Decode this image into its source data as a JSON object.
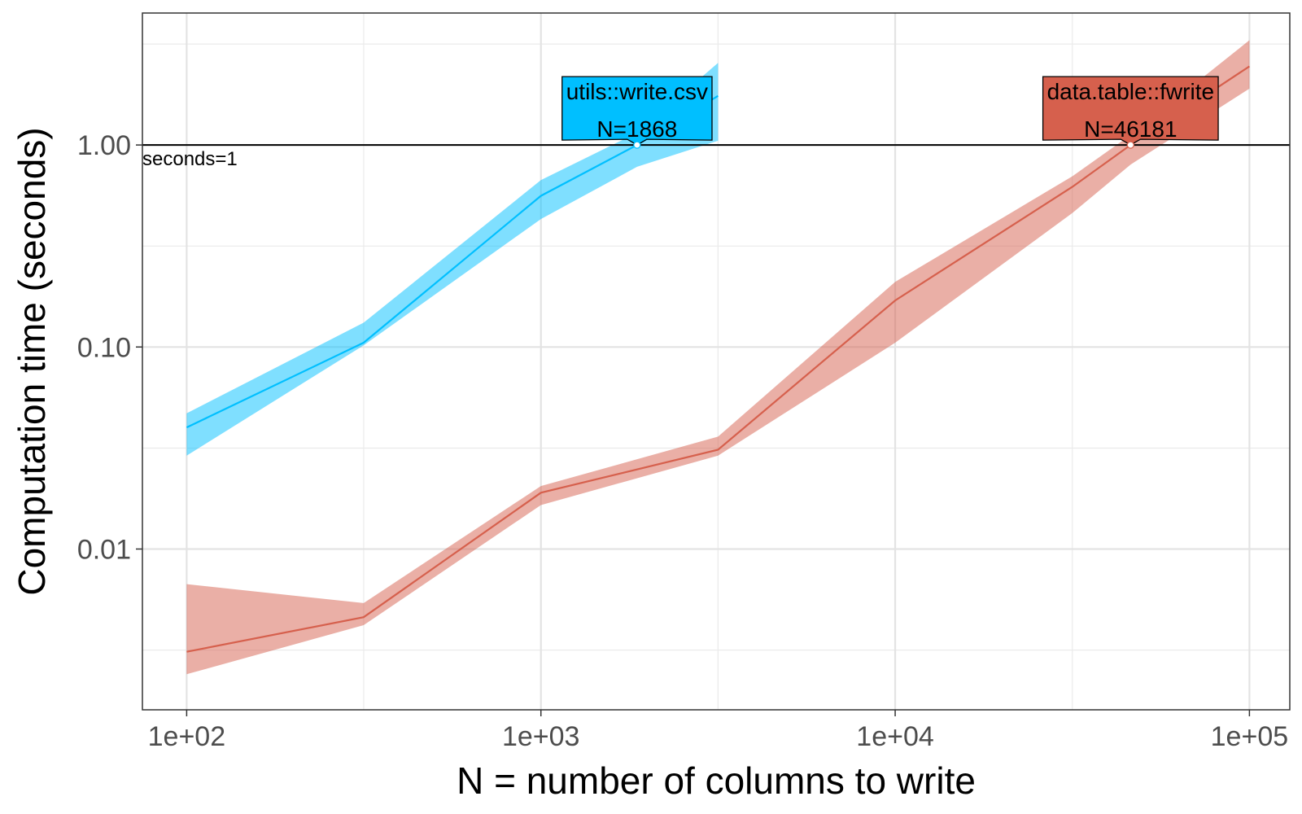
{
  "chart_data": {
    "type": "line",
    "x_scale": "log10",
    "y_scale": "log10",
    "xlabel": "N = number of columns to write",
    "ylabel": "Computation time (seconds)",
    "xlim": [
      75,
      130000
    ],
    "ylim": [
      0.0016,
      4.5
    ],
    "x_ticks": [
      {
        "value": 100,
        "label": "1e+02"
      },
      {
        "value": 1000,
        "label": "1e+03"
      },
      {
        "value": 10000,
        "label": "1e+04"
      },
      {
        "value": 100000,
        "label": "1e+05"
      }
    ],
    "y_ticks": [
      {
        "value": 0.01,
        "label": "0.01"
      },
      {
        "value": 0.1,
        "label": "0.10"
      },
      {
        "value": 1,
        "label": "1.00"
      }
    ],
    "y_minor_grid": [
      0.00316,
      0.0316,
      0.316,
      3.16
    ],
    "x_minor_grid": [
      316,
      3162,
      31623
    ],
    "grid": true,
    "reference_line": {
      "y": 1,
      "label": "seconds=1",
      "color": "#000000"
    },
    "series": [
      {
        "name": "utils::write.csv",
        "color": "#00bfff",
        "band_color": "#00bfff",
        "points": [
          {
            "x": 100,
            "y": 0.04,
            "lo": 0.029,
            "hi": 0.047
          },
          {
            "x": 316,
            "y": 0.105,
            "lo": 0.102,
            "hi": 0.132
          },
          {
            "x": 1000,
            "y": 0.56,
            "lo": 0.43,
            "hi": 0.67
          },
          {
            "x": 1868,
            "y": 1.0,
            "lo": 0.78,
            "hi": 1.15
          },
          {
            "x": 3162,
            "y": 1.75,
            "lo": 1.05,
            "hi": 2.55
          }
        ],
        "callout": {
          "line1": "utils::write.csv",
          "line2": "N=1868",
          "x": 1868,
          "y": 1.0,
          "fill": "#00bfff"
        }
      },
      {
        "name": "data.table::fwrite",
        "color": "#d6604d",
        "band_color": "#d6604d",
        "points": [
          {
            "x": 100,
            "y": 0.0031,
            "lo": 0.0024,
            "hi": 0.0067
          },
          {
            "x": 316,
            "y": 0.0046,
            "lo": 0.0042,
            "hi": 0.0054
          },
          {
            "x": 1000,
            "y": 0.019,
            "lo": 0.0165,
            "hi": 0.0205
          },
          {
            "x": 3162,
            "y": 0.031,
            "lo": 0.029,
            "hi": 0.036
          },
          {
            "x": 10000,
            "y": 0.17,
            "lo": 0.105,
            "hi": 0.21
          },
          {
            "x": 31623,
            "y": 0.62,
            "lo": 0.46,
            "hi": 0.7
          },
          {
            "x": 46181,
            "y": 1.0,
            "lo": 0.8,
            "hi": 1.12
          },
          {
            "x": 100000,
            "y": 2.45,
            "lo": 1.9,
            "hi": 3.3
          }
        ],
        "callout": {
          "line1": "data.table::fwrite",
          "line2": "N=46181",
          "x": 46181,
          "y": 1.0,
          "fill": "#d6604d"
        }
      }
    ]
  }
}
